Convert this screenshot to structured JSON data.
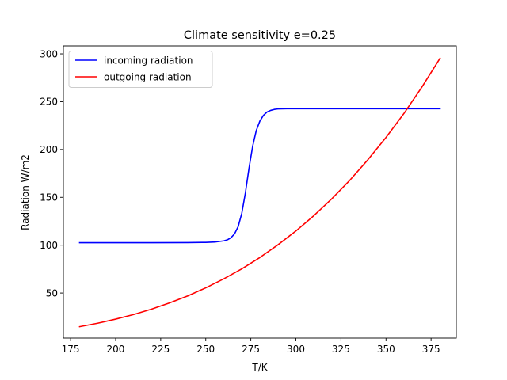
{
  "chart_data": {
    "type": "line",
    "title": "Climate sensitivity e=0.25",
    "xlabel": "T/K",
    "ylabel": "Radiation W/m2",
    "xlim": [
      171,
      389
    ],
    "ylim": [
      2.9,
      308.3
    ],
    "xticks": [
      175,
      200,
      225,
      250,
      275,
      300,
      325,
      350,
      375
    ],
    "yticks": [
      50,
      100,
      150,
      200,
      250,
      300
    ],
    "grid": false,
    "legend_position": "top-left",
    "series": [
      {
        "name": "incoming radiation",
        "color": "#0000ff",
        "x": [
          180,
          200,
          220,
          240,
          250,
          255,
          260,
          262,
          264,
          266,
          268,
          270,
          272,
          274,
          276,
          278,
          280,
          282,
          284,
          286,
          288,
          290,
          295,
          300,
          320,
          340,
          360,
          380
        ],
        "y": [
          102.6,
          102.6,
          102.6,
          102.7,
          102.9,
          103.3,
          104.5,
          105.6,
          107.8,
          111.9,
          119.5,
          133.4,
          154.8,
          180.5,
          203.2,
          219.7,
          229.6,
          235.7,
          239.2,
          240.9,
          241.9,
          242.4,
          242.6,
          242.6,
          242.6,
          242.6,
          242.6,
          242.6
        ]
      },
      {
        "name": "outgoing radiation",
        "color": "#ff0000",
        "x": [
          180,
          190,
          200,
          210,
          220,
          230,
          240,
          250,
          260,
          270,
          280,
          290,
          300,
          310,
          320,
          330,
          340,
          350,
          360,
          370,
          380
        ],
        "y": [
          14.8,
          18.4,
          22.7,
          27.5,
          33.2,
          39.7,
          47.0,
          55.4,
          64.8,
          75.3,
          87.1,
          100.3,
          114.8,
          130.9,
          148.6,
          168.0,
          189.4,
          212.6,
          237.8,
          265.5,
          295.5
        ]
      }
    ]
  }
}
